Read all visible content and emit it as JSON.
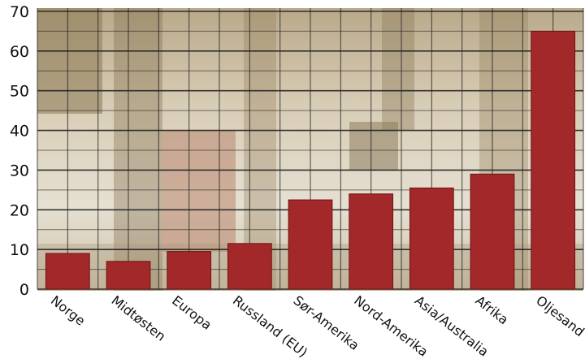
{
  "colors": {
    "bar": "#a3282a",
    "bar_edge": "#6e1414",
    "grid": "#222222",
    "photo_base": "#c9bca1"
  },
  "chart_data": {
    "type": "bar",
    "categories": [
      "Norge",
      "Midtøsten",
      "Europa",
      "Russland (EU)",
      "Sør-Amerika",
      "Nord-Amerika",
      "Asia/Australia",
      "Afrika",
      "Oljesand"
    ],
    "values": [
      9,
      7,
      9.5,
      11.5,
      22.5,
      24,
      25.5,
      29,
      65
    ],
    "title": "",
    "xlabel": "",
    "ylabel": "",
    "ylim": [
      0,
      70
    ],
    "yticks": [
      0,
      10,
      20,
      30,
      40,
      50,
      60,
      70
    ],
    "grid": true,
    "background": "photograph of stacked barrels"
  }
}
